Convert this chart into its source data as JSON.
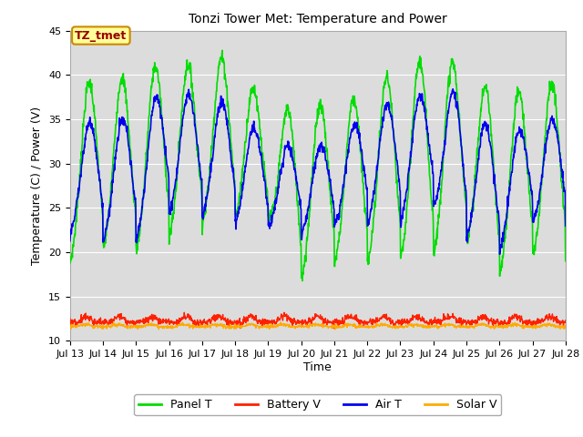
{
  "title": "Tonzi Tower Met: Temperature and Power",
  "xlabel": "Time",
  "ylabel": "Temperature (C) / Power (V)",
  "xlim": [
    0,
    15
  ],
  "ylim": [
    10,
    45
  ],
  "yticks": [
    10,
    15,
    20,
    25,
    30,
    35,
    40,
    45
  ],
  "xtick_labels": [
    "Jul 13",
    "Jul 14",
    "Jul 15",
    "Jul 16",
    "Jul 17",
    "Jul 18",
    "Jul 19",
    "Jul 20",
    "Jul 21",
    "Jul 22",
    "Jul 23",
    "Jul 24",
    "Jul 25",
    "Jul 26",
    "Jul 27",
    "Jul 28"
  ],
  "panel_color": "#00dd00",
  "battery_color": "#ff2000",
  "air_color": "#0000ee",
  "solar_color": "#ffaa00",
  "axes_bg": "#dcdcdc",
  "fig_bg": "#ffffff",
  "legend_label": "TZ_tmet",
  "legend_bg": "#ffff99",
  "legend_border": "#cc8800",
  "legend_text_color": "#990000",
  "grid_color": "#ffffff",
  "panel_lw": 1.2,
  "battery_lw": 1.0,
  "air_lw": 1.2,
  "solar_lw": 1.0,
  "title_fontsize": 10,
  "axis_label_fontsize": 9,
  "tick_fontsize": 8
}
